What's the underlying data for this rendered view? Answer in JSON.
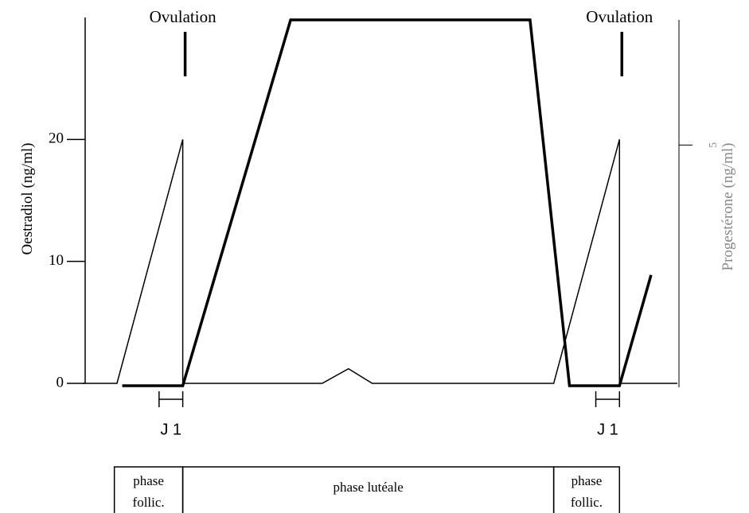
{
  "chart_data": {
    "type": "line",
    "ylabel": "Oestradiol (ng/ml)",
    "y2label": "Progestérone (ng/ml)",
    "xlim": [
      -3.8,
      18.8
    ],
    "ylim": [
      0,
      30
    ],
    "yticks": [
      0,
      10,
      20
    ],
    "y2lim": [
      0,
      7.6
    ],
    "y2ticks": [
      5
    ],
    "series": [
      {
        "color": "#000000",
        "width": 1.5,
        "x": [
          -3.8,
          -2.5,
          0,
          0,
          5.3,
          6.3,
          7.2,
          14.1,
          16.6,
          16.6,
          18.8
        ],
        "values": [
          0,
          0,
          20,
          0,
          0,
          1.2,
          0,
          0,
          20,
          0,
          0
        ]
      },
      {
        "color": "#000000",
        "width": 3.5,
        "axis": "y2",
        "x": [
          -2.3,
          0,
          4.1,
          13.2,
          14.7,
          16.6,
          17.8
        ],
        "values": [
          0,
          0,
          7.6,
          7.6,
          0,
          0,
          2.3
        ]
      }
    ],
    "annotations": [
      {
        "text": "Ovulation",
        "x": 0
      },
      {
        "text": "Ovulation",
        "x": 16.6
      }
    ],
    "markers": [
      {
        "text": "J 1",
        "x": [
          -0.9,
          0
        ]
      },
      {
        "text": "J 1",
        "x": [
          15.7,
          16.6
        ]
      }
    ],
    "phases": [
      {
        "lines": [
          "phase",
          "follic."
        ],
        "x": [
          -2.6,
          0
        ]
      },
      {
        "lines": [
          "phase lutéale"
        ],
        "x": [
          0,
          14.1
        ]
      },
      {
        "lines": [
          "phase",
          "follic."
        ],
        "x": [
          14.1,
          16.6
        ]
      }
    ]
  }
}
